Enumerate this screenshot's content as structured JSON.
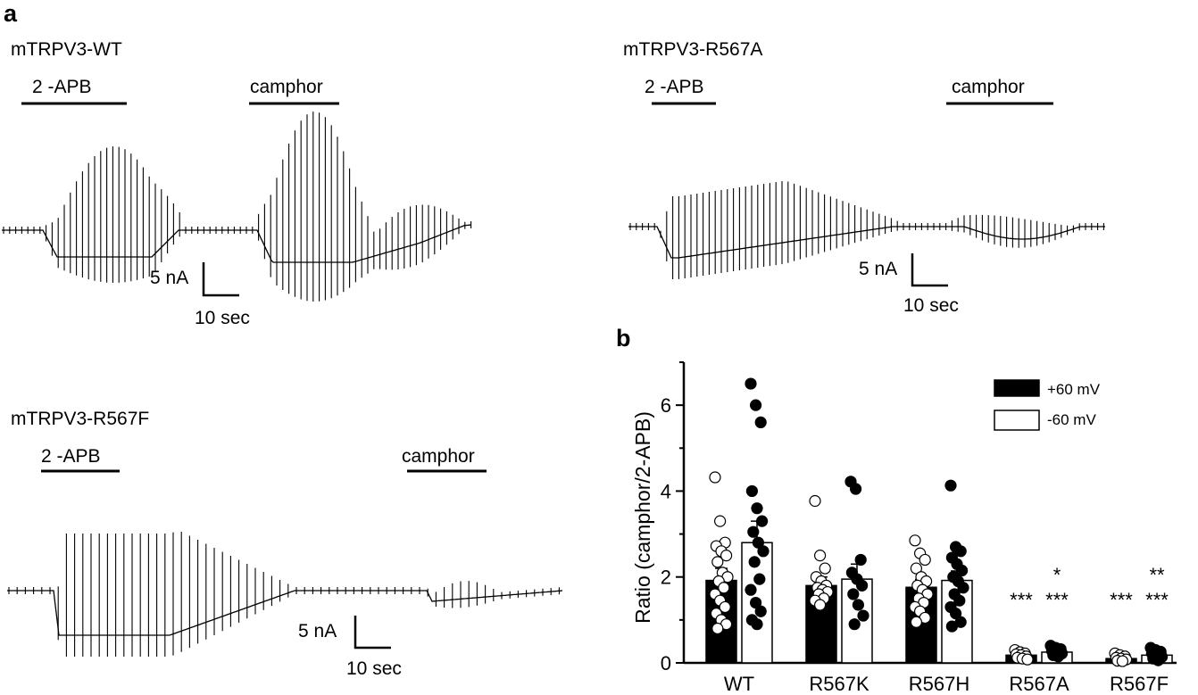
{
  "panels": {
    "a": "a",
    "b": "b"
  },
  "traces": [
    {
      "id": "wt",
      "title": "mTRPV3-WT",
      "stimuli": [
        {
          "label": "2 -APB"
        },
        {
          "label": "camphor"
        }
      ],
      "scale_bar": {
        "current": "5 nA",
        "time": "10 sec"
      }
    },
    {
      "id": "r567a",
      "title": "mTRPV3-R567A",
      "stimuli": [
        {
          "label": "2 -APB"
        },
        {
          "label": "camphor"
        }
      ],
      "scale_bar": {
        "current": "5 nA",
        "time": "10 sec"
      }
    },
    {
      "id": "r567f",
      "title": "mTRPV3-R567F",
      "stimuli": [
        {
          "label": "2 -APB"
        },
        {
          "label": "camphor"
        }
      ],
      "scale_bar": {
        "current": "5 nA",
        "time": "10 sec"
      }
    }
  ],
  "chart_data": {
    "type": "bar",
    "title": "",
    "xlabel": "",
    "ylabel": "Ratio (camphor/2-APB)",
    "ylim": [
      0,
      7
    ],
    "yticks": [
      0,
      2,
      4,
      6
    ],
    "categories": [
      "WT",
      "R567K",
      "R567H",
      "R567A",
      "R567F"
    ],
    "legend": {
      "position": "top-right"
    },
    "series": [
      {
        "name": "+60 mV",
        "fill": "#000000",
        "values": [
          1.92,
          1.8,
          1.76,
          0.18,
          0.1
        ],
        "sem": [
          0.28,
          0.2,
          0.18,
          0.03,
          0.02
        ],
        "points": [
          [
            4.32,
            3.3,
            2.8,
            2.72,
            2.6,
            2.5,
            2.35,
            2.1,
            2.0,
            1.9,
            1.75,
            1.6,
            1.45,
            1.3,
            1.15,
            1.0,
            0.9,
            0.8
          ],
          [
            3.77,
            2.5,
            2.2,
            2.0,
            1.9,
            1.8,
            1.75,
            1.7,
            1.65,
            1.6,
            1.5,
            1.45,
            1.35
          ],
          [
            2.85,
            2.55,
            2.4,
            2.2,
            2.0,
            1.9,
            1.8,
            1.7,
            1.6,
            1.5,
            1.4,
            1.3,
            1.2,
            1.05,
            0.95
          ],
          [
            0.3,
            0.25,
            0.22,
            0.2,
            0.18,
            0.15,
            0.12,
            0.1,
            0.08
          ],
          [
            0.22,
            0.18,
            0.15,
            0.12,
            0.1,
            0.08,
            0.05,
            0.04
          ]
        ],
        "point_fill": "#ffffff"
      },
      {
        "name": "-60 mV",
        "fill": "#ffffff",
        "values": [
          2.8,
          1.95,
          1.92,
          0.25,
          0.18
        ],
        "sem": [
          0.5,
          0.35,
          0.22,
          0.04,
          0.03
        ],
        "points": [
          [
            6.5,
            6.0,
            5.6,
            4.0,
            3.6,
            3.3,
            3.05,
            2.8,
            2.6,
            2.35,
            1.95,
            1.7,
            1.4,
            1.2,
            1.0,
            0.9
          ],
          [
            4.22,
            4.05,
            2.4,
            2.1,
            1.95,
            1.8,
            1.6,
            1.35,
            1.1,
            0.9
          ],
          [
            4.13,
            2.7,
            2.6,
            2.45,
            2.3,
            2.15,
            2.0,
            1.9,
            1.75,
            1.6,
            1.45,
            1.3,
            1.15,
            0.95,
            0.85
          ],
          [
            0.4,
            0.35,
            0.32,
            0.28,
            0.25,
            0.22,
            0.18,
            0.15
          ],
          [
            0.35,
            0.3,
            0.26,
            0.22,
            0.18,
            0.14,
            0.1,
            0.06
          ]
        ],
        "point_fill": "#000000"
      }
    ],
    "annotations": [
      {
        "category": "R567A",
        "series": "+60 mV",
        "text": "***"
      },
      {
        "category": "R567A",
        "series": "-60 mV",
        "text": "***"
      },
      {
        "category": "R567A",
        "series": "-60 mV",
        "text": "*",
        "row": 2
      },
      {
        "category": "R567F",
        "series": "+60 mV",
        "text": "***"
      },
      {
        "category": "R567F",
        "series": "-60 mV",
        "text": "***"
      },
      {
        "category": "R567F",
        "series": "-60 mV",
        "text": "**",
        "row": 2
      }
    ]
  }
}
